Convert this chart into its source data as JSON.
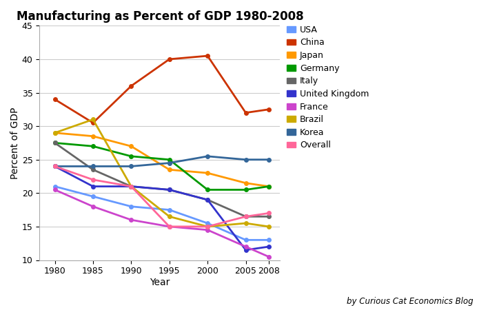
{
  "title": "Manufacturing as Percent of GDP 1980-2008",
  "xlabel": "Year",
  "ylabel": "Percent of GDP",
  "annotation": "by Curious Cat Economics Blog",
  "years": [
    1980,
    1985,
    1990,
    1995,
    2000,
    2005,
    2008
  ],
  "series": [
    {
      "label": "USA",
      "color": "#6699FF",
      "data": [
        21,
        19.5,
        18,
        17.5,
        15.5,
        13,
        13
      ]
    },
    {
      "label": "China",
      "color": "#CC3300",
      "data": [
        34,
        30.5,
        36,
        40,
        40.5,
        32,
        32.5
      ]
    },
    {
      "label": "Japan",
      "color": "#FF9900",
      "data": [
        29,
        28.5,
        27,
        23.5,
        23,
        21.5,
        21
      ]
    },
    {
      "label": "Germany",
      "color": "#009900",
      "data": [
        27.5,
        27,
        25.5,
        25,
        20.5,
        20.5,
        21
      ]
    },
    {
      "label": "Italy",
      "color": "#666666",
      "data": [
        27.5,
        23.5,
        21,
        20.5,
        19,
        16.5,
        16.5
      ]
    },
    {
      "label": "United Kingdom",
      "color": "#3333CC",
      "data": [
        24,
        21,
        21,
        20.5,
        19,
        11.5,
        12
      ]
    },
    {
      "label": "France",
      "color": "#CC44CC",
      "data": [
        20.5,
        18,
        16,
        15,
        14.5,
        12,
        10.5
      ]
    },
    {
      "label": "Brazil",
      "color": "#CCAA00",
      "data": [
        29,
        31,
        21,
        16.5,
        15,
        15.5,
        15
      ]
    },
    {
      "label": "Korea",
      "color": "#336699",
      "data": [
        24,
        24,
        24,
        24.5,
        25.5,
        25,
        25
      ]
    },
    {
      "label": "Overall",
      "color": "#FF6699",
      "data": [
        24,
        22,
        21,
        15,
        15,
        16.5,
        17
      ]
    }
  ],
  "ylim": [
    10,
    45
  ],
  "yticks": [
    10,
    15,
    20,
    25,
    30,
    35,
    40,
    45
  ],
  "figsize": [
    7.08,
    4.5
  ],
  "dpi": 100,
  "background_color": "#FFFFFF",
  "grid_color": "#CCCCCC"
}
